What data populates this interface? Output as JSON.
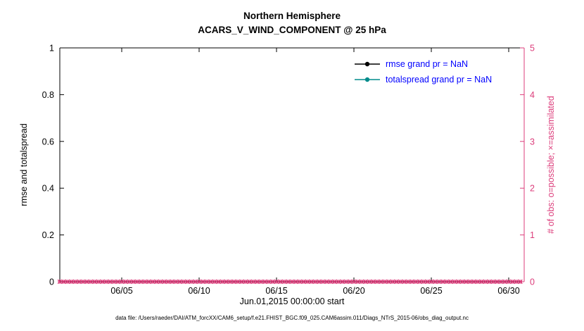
{
  "figure": {
    "caption": "data file: /Users/raeder/DAI/ATM_forcXX/CAM6_setup/f.e21.FHIST_BGC.f09_025.CAM6assim.011/Diags_NTrS_2015-06/obs_diag_output.nc"
  },
  "chart_data": {
    "type": "line",
    "title": "Northern Hemisphere",
    "subtitle": "ACARS_V_WIND_COMPONENT @ 25 hPa",
    "xlabel": "Jun.01,2015 00:00:00 start",
    "grid": false,
    "left_axis": {
      "label": "rmse and totalspread",
      "color": "#000000",
      "ylim": [
        0,
        1
      ],
      "ticks": [
        "0",
        "0.2",
        "0.4",
        "0.6",
        "0.8",
        "1"
      ]
    },
    "right_axis": {
      "label": "# of obs: o=possible; ×=assimilated",
      "color": "#dc3d7b",
      "ylim": [
        0,
        5
      ],
      "ticks": [
        "0",
        "1",
        "2",
        "3",
        "4",
        "5"
      ]
    },
    "x_axis": {
      "range_days": [
        0,
        30
      ],
      "tick_days": [
        4,
        9,
        14,
        19,
        24,
        29
      ],
      "tick_labels": [
        "06/05",
        "06/10",
        "06/15",
        "06/20",
        "06/25",
        "06/30"
      ]
    },
    "series": [
      {
        "name": "rmse",
        "legend": "rmse grand pr = NaN",
        "color": "#000000",
        "marker": "filled-circle",
        "values": [],
        "values_note": "all NaN, no line drawn"
      },
      {
        "name": "totalspread",
        "legend": "totalspread grand pr = NaN",
        "color": "#008b8b",
        "marker": "filled-circle",
        "values": [],
        "values_note": "all NaN, no line drawn"
      }
    ],
    "legend": {
      "text_color": "#0000ff",
      "position": "upper-right",
      "border": false
    },
    "obs_counts": {
      "possible_marker": "o",
      "assimilated_marker": "x",
      "color": "#dc3d7b",
      "value": 0,
      "start_day": 0,
      "end_day": 29.75,
      "interval_days": 0.25
    }
  }
}
